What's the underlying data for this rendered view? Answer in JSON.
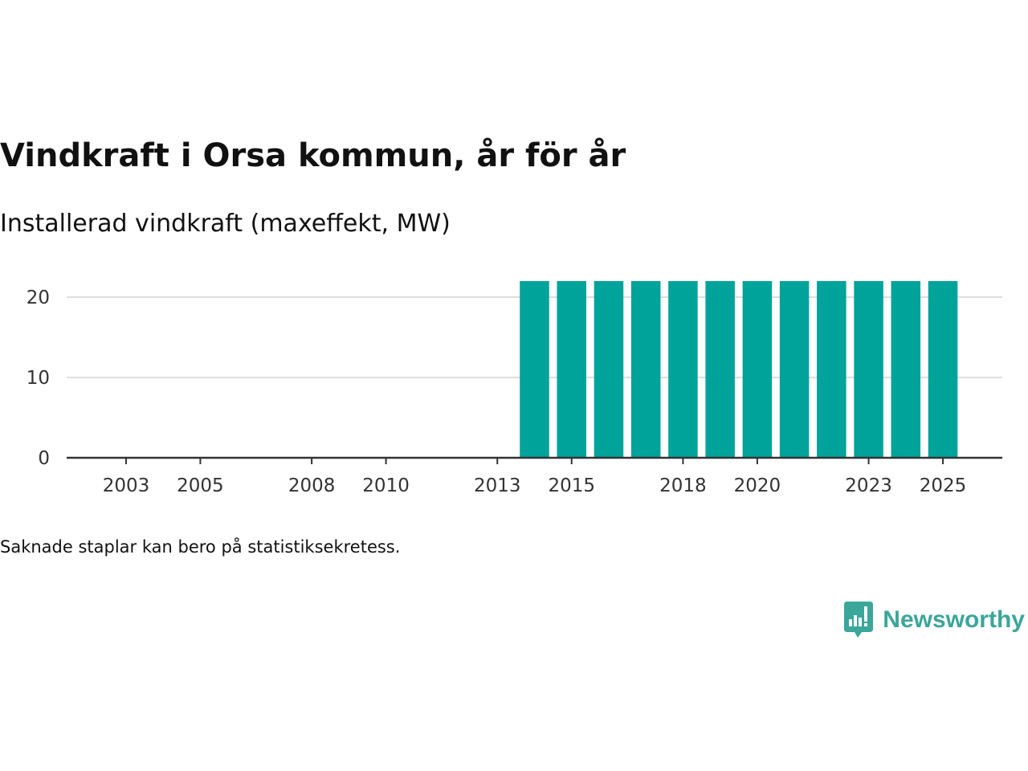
{
  "header": {
    "title": "Vindkraft i Orsa kommun, år för år",
    "subtitle": "Installerad vindkraft (maxeffekt, MW)"
  },
  "footer": {
    "note": "Saknade staplar kan bero på statistiksekretess.",
    "brand": "Newsworthy"
  },
  "colors": {
    "bar": "#00a39a",
    "grid": "#dddddd",
    "axis": "#333333",
    "brand": "#3ba69a"
  },
  "icons": {
    "logo": "bar-chart-speech-bubble-icon"
  },
  "chart_data": {
    "type": "bar",
    "title": "Vindkraft i Orsa kommun, år för år",
    "subtitle": "Installerad vindkraft (maxeffekt, MW)",
    "xlabel": "",
    "ylabel": "",
    "categories": [
      2014,
      2015,
      2016,
      2017,
      2018,
      2019,
      2020,
      2021,
      2022,
      2023,
      2024,
      2025
    ],
    "values": [
      22,
      22,
      22,
      22,
      22,
      22,
      22,
      22,
      22,
      22,
      22,
      22
    ],
    "xlim": [
      2001.4,
      2026.6
    ],
    "ylim": [
      0,
      23
    ],
    "yticks": [
      0,
      10,
      20
    ],
    "xticks": [
      2003,
      2005,
      2008,
      2010,
      2013,
      2015,
      2018,
      2020,
      2023,
      2025
    ],
    "grid": "horizontal",
    "legend": "none"
  }
}
